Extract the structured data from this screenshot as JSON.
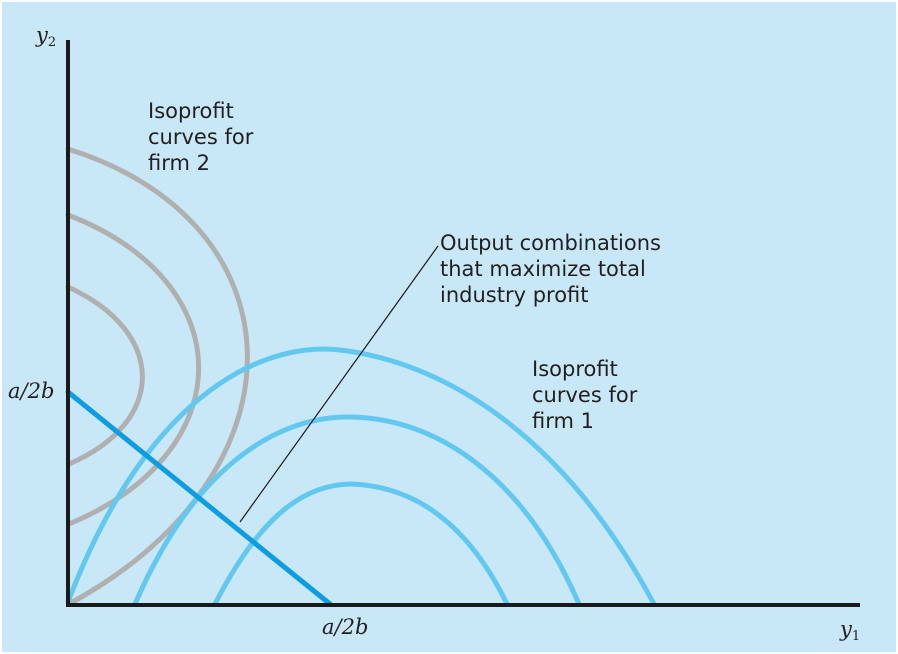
{
  "axes": {
    "y_label": "y",
    "y_subscript": "2",
    "x_label": "y",
    "x_subscript": "1"
  },
  "ticks": {
    "x_tick": "a/2b",
    "y_tick": "a/2b"
  },
  "annotations": {
    "firm2_isoprofit": "Isoprofit\ncurves for\nfirm 2",
    "firm1_isoprofit": "Isoprofit\ncurves for\nfirm 1",
    "max_industry_profit": "Output combinations\nthat maximize total\nindustry profit"
  },
  "colors": {
    "background": "#c8e8f8",
    "axes": "#1a1a1a",
    "firm1_curves": "#62c8f0",
    "firm2_curves": "#b0b0b0",
    "profit_line": "#0d9de0",
    "pointer": "#1a1a1a"
  }
}
